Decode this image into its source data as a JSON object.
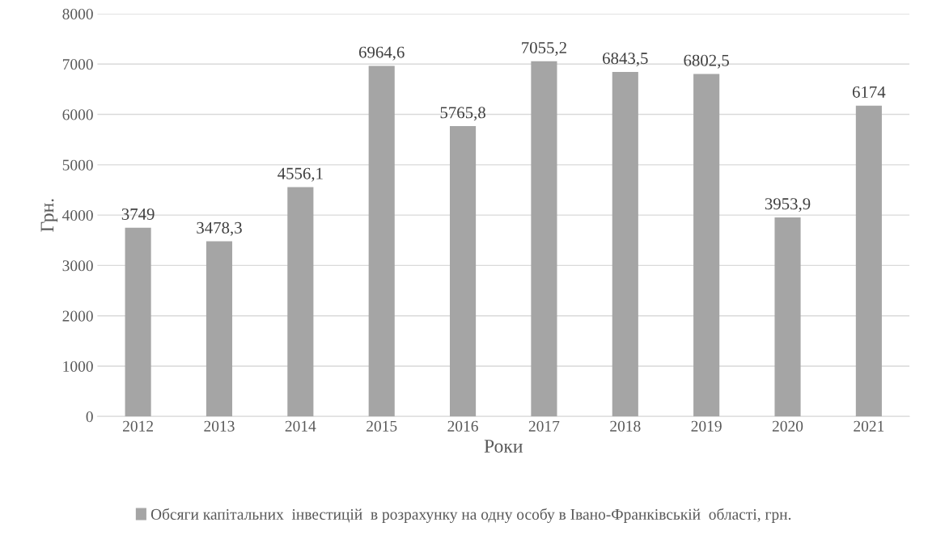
{
  "chart_data": {
    "type": "bar",
    "xlabel": "Роки",
    "ylabel": "Грн.",
    "categories": [
      "2012",
      "2013",
      "2014",
      "2015",
      "2016",
      "2017",
      "2018",
      "2019",
      "2020",
      "2021"
    ],
    "series": [
      {
        "name": "Обсяги капітальних  інвестицій  в розрахунку на одну особу в Івано-Франківській  області, грн.",
        "color": "#a5a5a5",
        "values": [
          3749,
          3478.3,
          4556.1,
          6964.6,
          5765.8,
          7055.2,
          6843.5,
          6802.5,
          3953.9,
          6174
        ],
        "value_labels": [
          "3749",
          "3478,3",
          "4556,1",
          "6964,6",
          "5765,8",
          "7055,2",
          "6843,5",
          "6802,5",
          "3953,9",
          "6174"
        ]
      }
    ],
    "ylim": [
      0,
      8000
    ],
    "yticks": [
      0,
      1000,
      2000,
      3000,
      4000,
      5000,
      6000,
      7000,
      8000
    ],
    "grid": "y",
    "legend": "bottom"
  }
}
